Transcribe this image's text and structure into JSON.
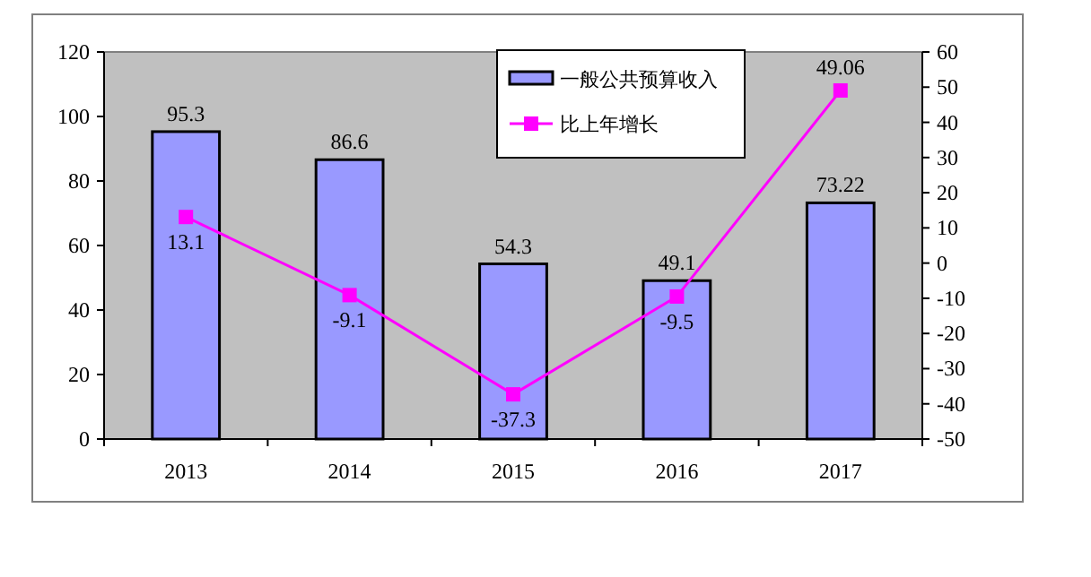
{
  "chart_data": {
    "type": "bar",
    "categories": [
      "2013",
      "2014",
      "2015",
      "2016",
      "2017"
    ],
    "series": [
      {
        "name": "一般公共预算收入",
        "color": "#9999ff",
        "values": [
          95.3,
          86.6,
          54.3,
          49.1,
          73.22
        ]
      },
      {
        "name": "比上年增长",
        "type": "line",
        "axis": "y2",
        "color": "#ff00ff",
        "marker": "square",
        "values": [
          13.1,
          -9.1,
          -37.3,
          -9.5,
          49.06
        ]
      }
    ],
    "ylim": [
      0,
      120
    ],
    "yticks": [
      0,
      20,
      40,
      60,
      80,
      100,
      120
    ],
    "y2lim": [
      -50,
      60
    ],
    "y2ticks": [
      -50,
      -40,
      -30,
      -20,
      -10,
      0,
      10,
      20,
      30,
      40,
      50,
      60
    ],
    "data_labels": true,
    "legend": "top",
    "grid": false
  }
}
